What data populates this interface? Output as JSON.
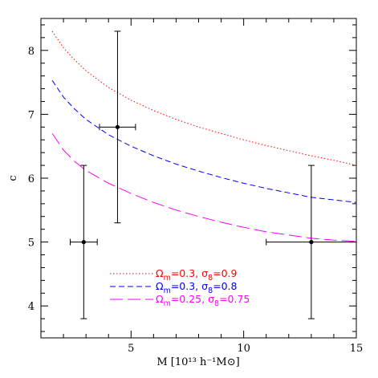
{
  "chart_data": {
    "type": "line",
    "xlabel": "M [10¹³ h⁻¹M⊙]",
    "ylabel": "c",
    "xlim": [
      1,
      15
    ],
    "ylim": [
      3.5,
      8.5
    ],
    "xticks": [
      5,
      10,
      15
    ],
    "yticks": [
      4,
      5,
      6,
      7,
      8
    ],
    "grid": false,
    "legend_position": "bottom-center",
    "series": [
      {
        "name": "Ωm=0.3, σ8=0.9",
        "legend": {
          "omega_sym": "Ω",
          "omega_sub": "m",
          "omega_val": "=0.3,",
          "sigma_sym": "σ",
          "sigma_sub": "8",
          "sigma_val": "=0.9"
        },
        "color": "#ff0000",
        "style": "dotted",
        "x": [
          1.5,
          2,
          2.5,
          3,
          4,
          5,
          6,
          7,
          8,
          9,
          10,
          11,
          12,
          13,
          14,
          15
        ],
        "y": [
          8.3,
          8.04,
          7.85,
          7.68,
          7.42,
          7.22,
          7.06,
          6.92,
          6.8,
          6.7,
          6.6,
          6.51,
          6.43,
          6.35,
          6.28,
          6.2
        ]
      },
      {
        "name": "Ωm=0.3, σ8=0.8",
        "legend": {
          "omega_sym": "Ω",
          "omega_sub": "m",
          "omega_val": "=0.3,",
          "sigma_sym": "σ",
          "sigma_sub": "8",
          "sigma_val": "=0.8"
        },
        "color": "#0000ff",
        "style": "dashed",
        "x": [
          1.5,
          2,
          2.5,
          3,
          4,
          5,
          6,
          7,
          8,
          9,
          10,
          11,
          12,
          13,
          14,
          15
        ],
        "y": [
          7.53,
          7.27,
          7.08,
          6.92,
          6.68,
          6.5,
          6.35,
          6.22,
          6.11,
          6.01,
          5.92,
          5.84,
          5.77,
          5.7,
          5.66,
          5.62
        ]
      },
      {
        "name": "Ωm=0.25, σ8=0.75",
        "legend": {
          "omega_sym": "Ω",
          "omega_sub": "m",
          "omega_val": "=0.25,",
          "sigma_sym": "σ",
          "sigma_sub": "8",
          "sigma_val": "=0.75"
        },
        "color": "#ff00ff",
        "style": "longdash",
        "x": [
          1.5,
          2,
          2.5,
          3,
          4,
          5,
          6,
          7,
          8,
          9,
          10,
          11,
          12,
          13,
          14,
          15
        ],
        "y": [
          6.7,
          6.44,
          6.26,
          6.12,
          5.92,
          5.76,
          5.62,
          5.5,
          5.4,
          5.31,
          5.23,
          5.16,
          5.11,
          5.06,
          5.03,
          5.01
        ]
      }
    ],
    "points": [
      {
        "x": 2.9,
        "y": 5.0,
        "xerr": [
          0.6,
          0.6
        ],
        "yerr": [
          1.2,
          1.2
        ]
      },
      {
        "x": 4.4,
        "y": 6.8,
        "xerr": [
          0.8,
          0.8
        ],
        "yerr": [
          1.5,
          1.5
        ]
      },
      {
        "x": 13.0,
        "y": 5.0,
        "xerr": [
          2.0,
          2.0
        ],
        "yerr": [
          1.2,
          1.2
        ]
      }
    ]
  }
}
